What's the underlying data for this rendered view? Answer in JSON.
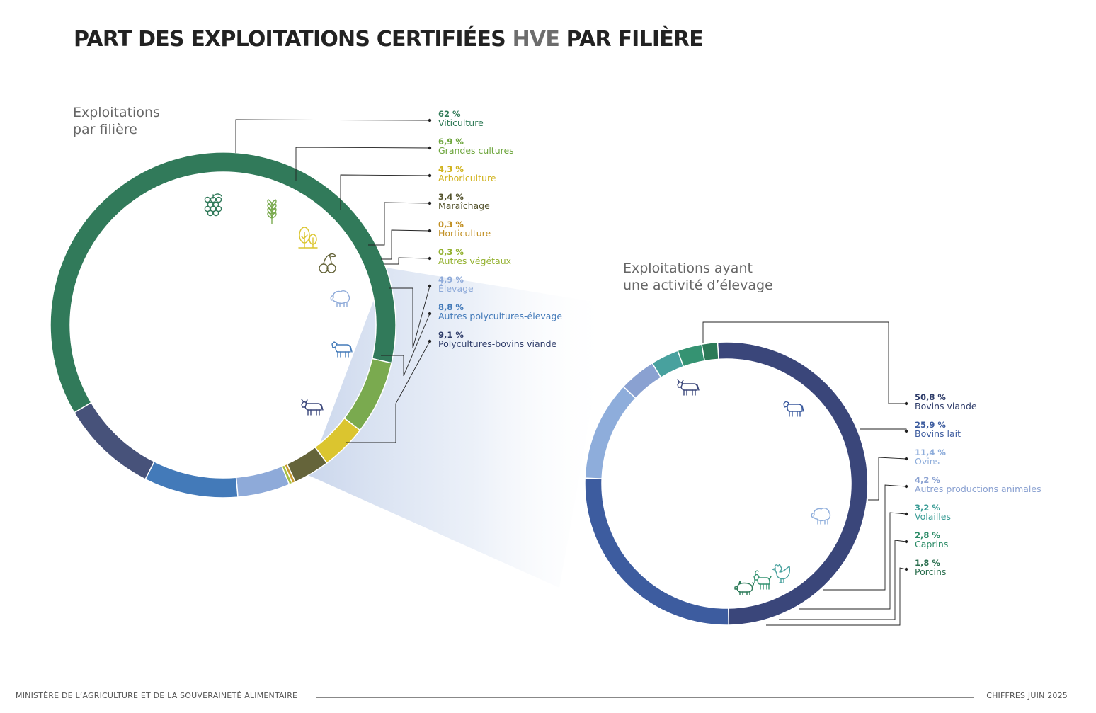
{
  "title": {
    "part1": "PART DES EXPLOITATIONS CERTIFIÉES",
    "highlight": "HVE",
    "part2": "PAR FILIÈRE"
  },
  "chart_data": [
    {
      "type": "pie",
      "variant": "donut",
      "title": "Exploitations par filière",
      "title_lines": [
        "Exploitations",
        "par filière"
      ],
      "unit": "%",
      "slices": [
        {
          "label": "Viticulture",
          "value": 62,
          "value_label": "62 %",
          "color": "#317a5a",
          "icon": "grapes-icon"
        },
        {
          "label": "Grandes cultures",
          "value": 6.9,
          "value_label": "6,9 %",
          "color": "#7aaa4f",
          "icon": "wheat-icon"
        },
        {
          "label": "Arboriculture",
          "value": 4.3,
          "value_label": "4,3 %",
          "color": "#dbc52f",
          "icon": "trees-icon"
        },
        {
          "label": "Maraîchage",
          "value": 3.4,
          "value_label": "3,4 %",
          "color": "#65643a",
          "icon": "cherries-icon"
        },
        {
          "label": "Horticulture",
          "value": 0.3,
          "value_label": "0,3 %",
          "color": "#c99a2c"
        },
        {
          "label": "Autres végétaux",
          "value": 0.3,
          "value_label": "0,3 %",
          "color": "#a6bf3f"
        },
        {
          "label": "Élevage",
          "value": 4.9,
          "value_label": "4,9 %",
          "color": "#8eaad9",
          "icon": "sheep-icon"
        },
        {
          "label": "Autres polycultures-élevage",
          "value": 8.8,
          "value_label": "8,8 %",
          "color": "#437ab9",
          "icon": "cow-icon"
        },
        {
          "label": "Polycultures-bovins viande",
          "value": 9.1,
          "value_label": "9,1 %",
          "color": "#47527a",
          "icon": "bull-icon"
        }
      ]
    },
    {
      "type": "pie",
      "variant": "donut",
      "title": "Exploitations ayant une activité d’élevage",
      "title_lines": [
        "Exploitations ayant",
        "une activité d’élevage"
      ],
      "unit": "%",
      "slices": [
        {
          "label": "Bovins viande",
          "value": 50.8,
          "value_label": "50,8 %",
          "color": "#3a467a",
          "icon": "bull-icon"
        },
        {
          "label": "Bovins lait",
          "value": 25.9,
          "value_label": "25,9 %",
          "color": "#3d5c9f",
          "icon": "cow-icon"
        },
        {
          "label": "Ovins",
          "value": 11.4,
          "value_label": "11,4 %",
          "color": "#8eaddb",
          "icon": "sheep-icon"
        },
        {
          "label": "Autres productions animales",
          "value": 4.2,
          "value_label": "4,2 %",
          "color": "#8aa1d1"
        },
        {
          "label": "Volailles",
          "value": 3.2,
          "value_label": "3,2 %",
          "color": "#48a19e",
          "icon": "rooster-icon"
        },
        {
          "label": "Caprins",
          "value": 2.8,
          "value_label": "2,8 %",
          "color": "#359372",
          "icon": "goat-icon"
        },
        {
          "label": "Porcins",
          "value": 1.8,
          "value_label": "1,8 %",
          "color": "#2c7a58",
          "icon": "pig-icon"
        }
      ]
    }
  ],
  "footer": {
    "left": "MINISTÈRE DE L’AGRICULTURE ET DE LA SOUVERAINETÉ ALIMENTAIRE",
    "right": "CHIFFRES JUIN 2025"
  }
}
